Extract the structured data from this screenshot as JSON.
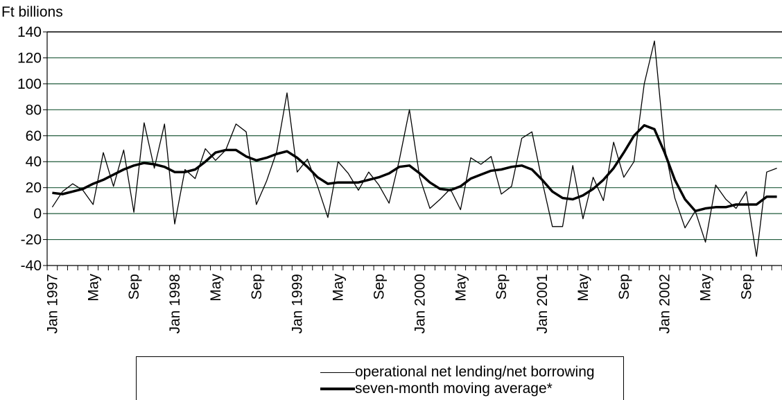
{
  "chart_data": {
    "type": "line",
    "ylabel": "Ft billions",
    "ylim": [
      -40,
      140
    ],
    "yticks": [
      -40,
      -20,
      0,
      20,
      40,
      60,
      80,
      100,
      120,
      140
    ],
    "x_tick_labels": [
      {
        "index": 0,
        "label": "Jan 1997"
      },
      {
        "index": 4,
        "label": "May"
      },
      {
        "index": 8,
        "label": "Sep"
      },
      {
        "index": 12,
        "label": "Jan 1998"
      },
      {
        "index": 16,
        "label": "May"
      },
      {
        "index": 20,
        "label": "Sep"
      },
      {
        "index": 24,
        "label": "Jan 1999"
      },
      {
        "index": 28,
        "label": "May"
      },
      {
        "index": 32,
        "label": "Sep"
      },
      {
        "index": 36,
        "label": "Jan 2000"
      },
      {
        "index": 40,
        "label": "May"
      },
      {
        "index": 44,
        "label": "Sep"
      },
      {
        "index": 48,
        "label": "Jan 2001"
      },
      {
        "index": 52,
        "label": "May"
      },
      {
        "index": 56,
        "label": "Sep"
      },
      {
        "index": 60,
        "label": "Jan 2002"
      },
      {
        "index": 64,
        "label": "May"
      },
      {
        "index": 68,
        "label": "Sep"
      }
    ],
    "grid": true,
    "grid_color": "#1f5a3a",
    "legend_position": "bottom",
    "series": [
      {
        "name": "operational net lending/net borrowing",
        "style": "thin",
        "values": [
          5,
          17,
          23,
          18,
          7,
          47,
          21,
          49,
          1,
          70,
          35,
          69,
          -8,
          34,
          27,
          50,
          41,
          49,
          69,
          63,
          7,
          25,
          48,
          93,
          32,
          42,
          21,
          -3,
          40,
          31,
          18,
          32,
          22,
          8,
          41,
          80,
          28,
          4,
          11,
          19,
          3,
          43,
          38,
          44,
          15,
          21,
          58,
          63,
          25,
          -10,
          -10,
          37,
          -4,
          28,
          10,
          55,
          28,
          40,
          100,
          133,
          51,
          12,
          -11,
          2,
          -22,
          22,
          11,
          4,
          17,
          -33,
          32,
          35
        ]
      },
      {
        "name": "seven-month moving average*",
        "style": "thick",
        "values": [
          16,
          15,
          17,
          19,
          23,
          26,
          30,
          34,
          37,
          39,
          38,
          36,
          32,
          32,
          34,
          40,
          47,
          49,
          49,
          44,
          41,
          43,
          46,
          48,
          43,
          36,
          28,
          23,
          24,
          24,
          24,
          26,
          28,
          31,
          36,
          37,
          31,
          24,
          19,
          18,
          21,
          27,
          30,
          33,
          34,
          36,
          37,
          34,
          26,
          17,
          12,
          11,
          14,
          19,
          26,
          35,
          47,
          60,
          68,
          65,
          47,
          26,
          11,
          2,
          4,
          5,
          5,
          7,
          7,
          7,
          13,
          13
        ]
      }
    ]
  }
}
